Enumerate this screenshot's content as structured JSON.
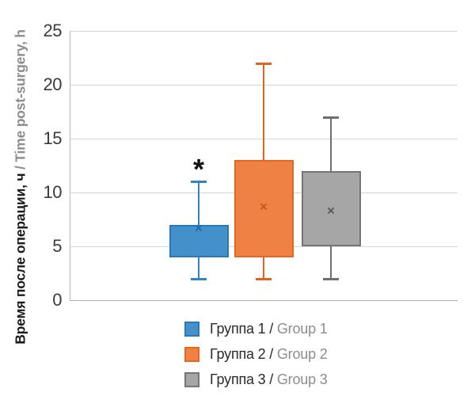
{
  "figure": {
    "y_axis_label": {
      "ru": "Время после операции, ч",
      "en": "/ Time post-surgery, h"
    }
  },
  "chart_data": {
    "type": "box",
    "title": "",
    "xlabel": "",
    "ylabel": "Время после операции, ч / Time post-surgery, h",
    "ylim": [
      0,
      25
    ],
    "yticks": [
      0,
      5,
      10,
      15,
      20,
      25
    ],
    "grid": "horizontal",
    "legend_position": "bottom",
    "categories": [
      "Группа 1 / Group 1",
      "Группа 2 / Group 2",
      "Группа 3 / Group 3"
    ],
    "series": [
      {
        "label_ru": "Группа 1 /",
        "label_en": "Group 1",
        "min": 2,
        "q1": 4,
        "median": null,
        "q3": 7,
        "max": 11,
        "mean": 6.6,
        "colors": {
          "fill": "#4390CB",
          "stroke": "#2979B8",
          "whisker": "#2D85C8",
          "mean": "#1F6BB0"
        }
      },
      {
        "label_ru": "Группа 2 /",
        "label_en": "Group 2",
        "min": 2,
        "q1": 4,
        "median": null,
        "q3": 13,
        "max": 22,
        "mean": 8.6,
        "colors": {
          "fill": "#F08145",
          "stroke": "#E4661F",
          "whisker": "#E2631D",
          "mean": "#C55A11"
        }
      },
      {
        "label_ru": "Группа 3 /",
        "label_en": "Group 3",
        "min": 2,
        "q1": 5,
        "median": null,
        "q3": 12,
        "max": 17,
        "mean": 8.2,
        "colors": {
          "fill": "#A6A6A6",
          "stroke": "#757575",
          "whisker": "#6E6E6E",
          "mean": "#595959"
        }
      }
    ],
    "annotations": [
      {
        "text": "*",
        "series_index": 0,
        "value": 12.6,
        "meaning": "significance-marker"
      }
    ]
  }
}
